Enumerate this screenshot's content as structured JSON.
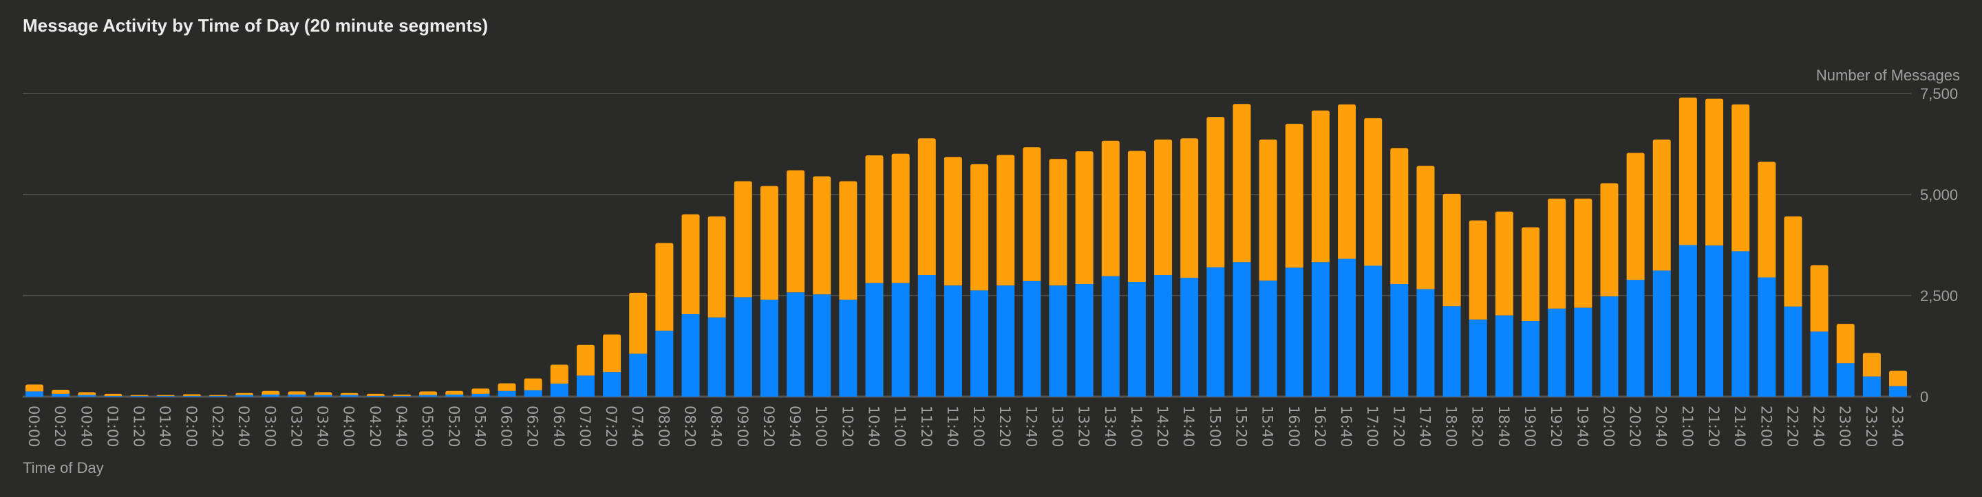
{
  "chart_data": {
    "type": "bar",
    "stacked": true,
    "title": "Message Activity by Time of Day (20 minute segments)",
    "xlabel": "Time of Day",
    "ylabel": "Number of Messages",
    "ylim": [
      0,
      7500
    ],
    "yticks": [
      0,
      2500,
      5000,
      7500
    ],
    "ytick_labels": [
      "0",
      "2,500",
      "5,000",
      "7,500"
    ],
    "y_axis_side": "right",
    "grid": true,
    "legend": "none",
    "colors": {
      "background": "#2a2a29",
      "series_bottom": "#0a84ff",
      "series_top": "#ff9f0a",
      "grid": "#4a4a4a",
      "text": "#a0a0a0"
    },
    "categories": [
      "00:00",
      "00:20",
      "00:40",
      "01:00",
      "01:20",
      "01:40",
      "02:00",
      "02:20",
      "02:40",
      "03:00",
      "03:20",
      "03:40",
      "04:00",
      "04:20",
      "04:40",
      "05:00",
      "05:20",
      "05:40",
      "06:00",
      "06:20",
      "06:40",
      "07:00",
      "07:20",
      "07:40",
      "08:00",
      "08:20",
      "08:40",
      "09:00",
      "09:20",
      "09:40",
      "10:00",
      "10:20",
      "10:40",
      "11:00",
      "11:20",
      "11:40",
      "12:00",
      "12:20",
      "12:40",
      "13:00",
      "13:20",
      "13:40",
      "14:00",
      "14:20",
      "14:40",
      "15:00",
      "15:20",
      "15:40",
      "16:00",
      "16:20",
      "16:40",
      "17:00",
      "17:20",
      "17:40",
      "18:00",
      "18:20",
      "18:40",
      "19:00",
      "19:20",
      "19:40",
      "20:00",
      "20:20",
      "20:40",
      "21:00",
      "21:20",
      "21:40",
      "22:00",
      "22:20",
      "22:40",
      "23:00",
      "23:20",
      "23:40"
    ],
    "series": [
      {
        "values": [
          130,
          70,
          40,
          20,
          20,
          20,
          20,
          20,
          40,
          50,
          50,
          40,
          40,
          20,
          20,
          40,
          50,
          70,
          140,
          160,
          320,
          520,
          610,
          1060,
          1630,
          2040,
          1960,
          2460,
          2400,
          2580,
          2530,
          2400,
          2810,
          2810,
          3010,
          2750,
          2630,
          2750,
          2860,
          2750,
          2790,
          2980,
          2840,
          3010,
          2940,
          3200,
          3330,
          2870,
          3190,
          3330,
          3410,
          3240,
          2790,
          2660,
          2240,
          1910,
          2010,
          1870,
          2180,
          2200,
          2480,
          2890,
          3120,
          3750,
          3740,
          3600,
          2950,
          2230,
          1610,
          830,
          500,
          260
        ]
      },
      {
        "values": [
          170,
          100,
          70,
          50,
          20,
          20,
          40,
          20,
          50,
          90,
          80,
          70,
          50,
          50,
          30,
          90,
          90,
          130,
          190,
          290,
          470,
          760,
          930,
          1510,
          2170,
          2470,
          2500,
          2870,
          2810,
          3020,
          2920,
          2930,
          3160,
          3200,
          3380,
          3180,
          3120,
          3230,
          3310,
          3130,
          3280,
          3350,
          3240,
          3350,
          3450,
          3720,
          3910,
          3490,
          3560,
          3750,
          3820,
          3650,
          3360,
          3050,
          2780,
          2450,
          2570,
          2320,
          2720,
          2700,
          2800,
          3140,
          3240,
          3650,
          3630,
          3630,
          2860,
          2230,
          1640,
          970,
          580,
          380
        ]
      }
    ]
  }
}
